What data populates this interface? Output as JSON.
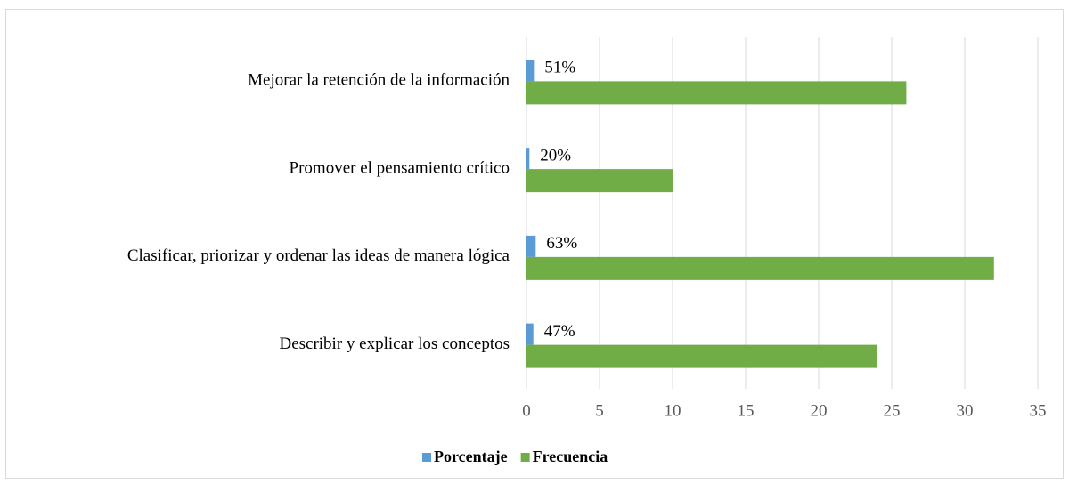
{
  "chart_data": {
    "type": "bar",
    "orientation": "horizontal",
    "categories": [
      "Mejorar la retención de la información",
      "Promover el pensamiento crítico",
      "Clasificar, priorizar y ordenar las ideas de manera lógica",
      "Describir y explicar los conceptos"
    ],
    "series": [
      {
        "name": "Porcentaje",
        "color": "#5b9bd5",
        "values": [
          0.51,
          0.2,
          0.63,
          0.47
        ],
        "value_labels": [
          "51%",
          "20%",
          "63%",
          "47%"
        ]
      },
      {
        "name": "Frecuencia",
        "color": "#70ad47",
        "values": [
          26,
          10,
          32,
          24
        ]
      }
    ],
    "xlim": [
      0,
      35
    ],
    "xticks": [
      0,
      5,
      10,
      15,
      20,
      25,
      30,
      35
    ],
    "grid": true,
    "legend": "bottom"
  }
}
